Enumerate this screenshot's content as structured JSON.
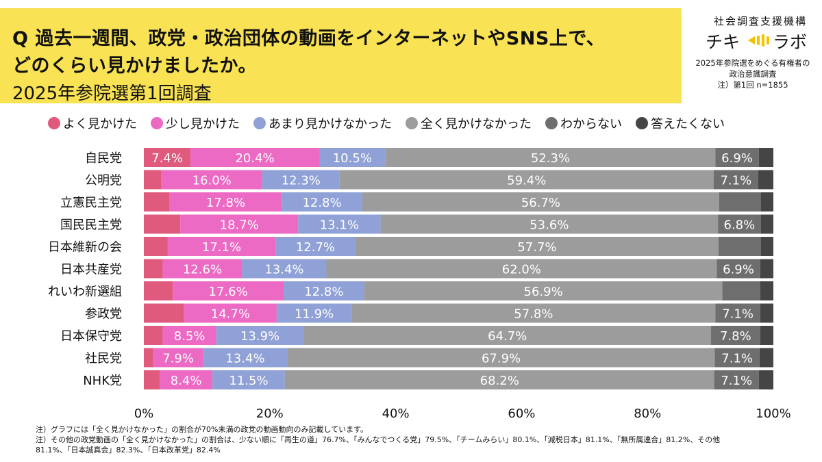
{
  "header": {
    "title_line1": "Q 過去一週間、政党・政治団体の動画をインターネットやSNS上で、",
    "title_line2": "どのくらい見かけましたか。",
    "subtitle": "2025年参院選第1回調査"
  },
  "branding": {
    "org_name": "社会調査支援機構",
    "logo_left": "チキ",
    "logo_right": "ラボ",
    "survey_title_line1": "2025年参院選をめぐる有権者の",
    "survey_title_line2": "政治意識調査",
    "survey_note": "注）第1回 n=1855"
  },
  "notes": [
    "注）グラフには「全く見かけなかった」の割合が70%未満の政党の動画動向のみ記載しています。",
    "注）その他の政党動画の「全く見かけなかった」の割合は、少ない順に「再生の道」76.7%、「みんなでつくる党」79.5%、「チームみらい」80.1%、「減税日本」81.1%、「無所属連合」81.2%、その他",
    "81.1%、「日本誠真会」82.3%、「日本改革党」82.4%"
  ],
  "chart_data": {
    "type": "bar",
    "orientation": "horizontal",
    "stacked": true,
    "percent_stacked": true,
    "xlim": [
      0,
      100
    ],
    "x_ticks": [
      "0%",
      "20%",
      "40%",
      "60%",
      "80%",
      "100%"
    ],
    "grid": false,
    "legend_position": "top",
    "categories": [
      "自民党",
      "公明党",
      "立憲民主党",
      "国民民主党",
      "日本維新の会",
      "日本共産党",
      "れいわ新選組",
      "参政党",
      "日本保守党",
      "社民党",
      "NHK党"
    ],
    "series": [
      {
        "name": "よく見かけた",
        "color": "#e05a7e",
        "values": [
          7.4,
          2.8,
          4.1,
          5.8,
          3.8,
          3.0,
          4.6,
          6.4,
          3.0,
          1.5,
          2.5
        ],
        "labels": [
          "7.4%",
          "",
          "",
          "",
          "",
          "",
          "",
          "",
          "",
          "",
          ""
        ]
      },
      {
        "name": "少し見かけた",
        "color": "#ec6ac4",
        "values": [
          20.4,
          16.0,
          17.8,
          18.7,
          17.1,
          12.6,
          17.6,
          14.7,
          8.5,
          7.9,
          8.4
        ],
        "labels": [
          "20.4%",
          "16.0%",
          "17.8%",
          "18.7%",
          "17.1%",
          "12.6%",
          "17.6%",
          "14.7%",
          "8.5%",
          "7.9%",
          "8.4%"
        ]
      },
      {
        "name": "あまり見かけなかった",
        "color": "#8fa1d6",
        "values": [
          10.5,
          12.3,
          12.8,
          13.1,
          12.7,
          13.4,
          12.8,
          11.9,
          13.9,
          13.4,
          11.5
        ],
        "labels": [
          "10.5%",
          "12.3%",
          "12.8%",
          "13.1%",
          "12.7%",
          "13.4%",
          "12.8%",
          "11.9%",
          "13.9%",
          "13.4%",
          "11.5%"
        ]
      },
      {
        "name": "全く見かけなかった",
        "color": "#9c9c9c",
        "values": [
          52.3,
          59.4,
          56.7,
          53.6,
          57.7,
          62.0,
          56.9,
          57.8,
          64.7,
          67.9,
          68.2
        ],
        "labels": [
          "52.3%",
          "59.4%",
          "56.7%",
          "53.6%",
          "57.7%",
          "62.0%",
          "56.9%",
          "57.8%",
          "64.7%",
          "67.9%",
          "68.2%"
        ]
      },
      {
        "name": "わからない",
        "color": "#6e6e6e",
        "values": [
          6.9,
          7.1,
          6.6,
          6.8,
          6.7,
          6.9,
          6.0,
          7.1,
          7.8,
          7.1,
          7.1
        ],
        "labels": [
          "6.9%",
          "7.1%",
          "",
          "6.8%",
          "",
          "6.9%",
          "",
          "7.1%",
          "7.8%",
          "7.1%",
          "7.1%"
        ]
      },
      {
        "name": "答えたくない",
        "color": "#454545",
        "values": [
          2.3,
          2.4,
          2.0,
          2.0,
          2.0,
          2.1,
          2.1,
          2.1,
          2.1,
          2.2,
          2.3
        ],
        "labels": [
          "",
          "",
          "",
          "",
          "",
          "",
          "",
          "",
          "",
          "",
          ""
        ]
      }
    ]
  }
}
